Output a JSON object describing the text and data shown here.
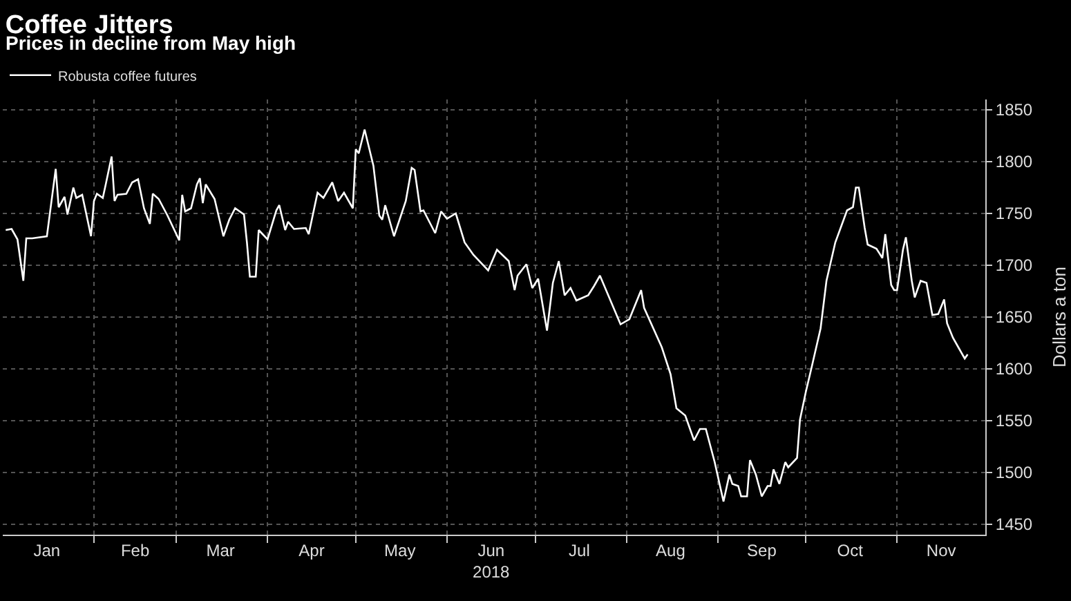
{
  "chart_data": {
    "type": "line",
    "title": "Coffee Jitters",
    "subtitle": "Prices in decline from May high",
    "ylabel": "Dollars a ton",
    "x": [
      "2018-01-02",
      "2018-01-04",
      "2018-01-06",
      "2018-01-08",
      "2018-01-09",
      "2018-01-11",
      "2018-01-16",
      "2018-01-19",
      "2018-01-20",
      "2018-01-22",
      "2018-01-23",
      "2018-01-25",
      "2018-01-26",
      "2018-01-28",
      "2018-01-31",
      "2018-02-01",
      "2018-02-02",
      "2018-02-04",
      "2018-02-05",
      "2018-02-07",
      "2018-02-08",
      "2018-02-09",
      "2018-02-12",
      "2018-02-14",
      "2018-02-16",
      "2018-02-18",
      "2018-02-20",
      "2018-02-21",
      "2018-02-23",
      "2018-02-26",
      "2018-03-02",
      "2018-03-03",
      "2018-03-04",
      "2018-03-06",
      "2018-03-08",
      "2018-03-09",
      "2018-03-10",
      "2018-03-11",
      "2018-03-14",
      "2018-03-17",
      "2018-03-19",
      "2018-03-21",
      "2018-03-24",
      "2018-03-25",
      "2018-03-26",
      "2018-03-28",
      "2018-03-29",
      "2018-04-01",
      "2018-04-04",
      "2018-04-05",
      "2018-04-07",
      "2018-04-08",
      "2018-04-10",
      "2018-04-14",
      "2018-04-15",
      "2018-04-18",
      "2018-04-20",
      "2018-04-23",
      "2018-04-25",
      "2018-04-27",
      "2018-04-30",
      "2018-05-01",
      "2018-05-02",
      "2018-05-04",
      "2018-05-07",
      "2018-05-09",
      "2018-05-10",
      "2018-05-11",
      "2018-05-14",
      "2018-05-18",
      "2018-05-20",
      "2018-05-21",
      "2018-05-23",
      "2018-05-24",
      "2018-05-28",
      "2018-05-30",
      "2018-06-01",
      "2018-06-04",
      "2018-06-07",
      "2018-06-10",
      "2018-06-15",
      "2018-06-18",
      "2018-06-22",
      "2018-06-24",
      "2018-06-25",
      "2018-06-28",
      "2018-06-30",
      "2018-07-02",
      "2018-07-05",
      "2018-07-07",
      "2018-07-09",
      "2018-07-11",
      "2018-07-13",
      "2018-07-15",
      "2018-07-19",
      "2018-07-21",
      "2018-07-23",
      "2018-07-30",
      "2018-08-02",
      "2018-08-06",
      "2018-08-07",
      "2018-08-13",
      "2018-08-16",
      "2018-08-18",
      "2018-08-21",
      "2018-08-24",
      "2018-08-26",
      "2018-08-28",
      "2018-08-31",
      "2018-09-03",
      "2018-09-05",
      "2018-09-06",
      "2018-09-08",
      "2018-09-09",
      "2018-09-11",
      "2018-09-12",
      "2018-09-14",
      "2018-09-16",
      "2018-09-18",
      "2018-09-19",
      "2018-09-20",
      "2018-09-22",
      "2018-09-24",
      "2018-09-25",
      "2018-09-28",
      "2018-09-29",
      "2018-10-01",
      "2018-10-03",
      "2018-10-06",
      "2018-10-08",
      "2018-10-11",
      "2018-10-15",
      "2018-10-17",
      "2018-10-18",
      "2018-10-19",
      "2018-10-21",
      "2018-10-22",
      "2018-10-25",
      "2018-10-27",
      "2018-10-28",
      "2018-10-30",
      "2018-10-31",
      "2018-11-01",
      "2018-11-03",
      "2018-11-04",
      "2018-11-06",
      "2018-11-07",
      "2018-11-09",
      "2018-11-11",
      "2018-11-13",
      "2018-11-15",
      "2018-11-17",
      "2018-11-18",
      "2018-11-20",
      "2018-11-22",
      "2018-11-24",
      "2018-11-25"
    ],
    "series": [
      {
        "name": "Robusta coffee futures",
        "color": "#ffffff",
        "values": [
          1734,
          1735,
          1725,
          1685,
          1726,
          1726,
          1728,
          1793,
          1756,
          1766,
          1749,
          1775,
          1765,
          1768,
          1728,
          1762,
          1769,
          1765,
          1778,
          1805,
          1762,
          1768,
          1769,
          1780,
          1783,
          1755,
          1740,
          1769,
          1764,
          1748,
          1724,
          1768,
          1752,
          1755,
          1778,
          1784,
          1760,
          1778,
          1764,
          1728,
          1744,
          1755,
          1749,
          1722,
          1689,
          1689,
          1734,
          1725,
          1753,
          1758,
          1734,
          1742,
          1735,
          1736,
          1730,
          1770,
          1765,
          1780,
          1762,
          1770,
          1755,
          1812,
          1808,
          1831,
          1796,
          1748,
          1744,
          1758,
          1728,
          1762,
          1794,
          1792,
          1752,
          1753,
          1731,
          1752,
          1745,
          1750,
          1722,
          1710,
          1695,
          1715,
          1704,
          1676,
          1690,
          1701,
          1678,
          1687,
          1637,
          1683,
          1704,
          1671,
          1678,
          1666,
          1671,
          1680,
          1690,
          1643,
          1648,
          1676,
          1659,
          1621,
          1595,
          1562,
          1555,
          1531,
          1542,
          1542,
          1510,
          1472,
          1498,
          1489,
          1487,
          1477,
          1477,
          1512,
          1498,
          1477,
          1487,
          1487,
          1503,
          1489,
          1510,
          1505,
          1514,
          1551,
          1578,
          1602,
          1639,
          1685,
          1722,
          1753,
          1756,
          1775,
          1775,
          1736,
          1720,
          1716,
          1707,
          1730,
          1681,
          1676,
          1676,
          1715,
          1727,
          1685,
          1669,
          1685,
          1683,
          1652,
          1653,
          1667,
          1644,
          1630,
          1620,
          1610,
          1614
        ]
      }
    ],
    "xlim": [
      "2018-01-01",
      "2018-12-01"
    ],
    "xticks": [
      {
        "value": "2018-01-16",
        "label": "Jan"
      },
      {
        "value": "2018-02-15",
        "label": "Feb"
      },
      {
        "value": "2018-03-16",
        "label": "Mar"
      },
      {
        "value": "2018-04-16",
        "label": "Apr"
      },
      {
        "value": "2018-05-16",
        "label": "May"
      },
      {
        "value": "2018-06-16",
        "label": "Jun\n2018"
      },
      {
        "value": "2018-07-16",
        "label": "Jul"
      },
      {
        "value": "2018-08-16",
        "label": "Aug"
      },
      {
        "value": "2018-09-16",
        "label": "Sep"
      },
      {
        "value": "2018-10-16",
        "label": "Oct"
      },
      {
        "value": "2018-11-16",
        "label": "Nov"
      },
      {
        "value": "2018-02-01",
        "label": null
      },
      {
        "value": "2018-03-01",
        "label": null
      },
      {
        "value": "2018-04-01",
        "label": null
      },
      {
        "value": "2018-05-01",
        "label": null
      },
      {
        "value": "2018-06-01",
        "label": null
      },
      {
        "value": "2018-07-01",
        "label": null
      },
      {
        "value": "2018-08-01",
        "label": null
      },
      {
        "value": "2018-09-01",
        "label": null
      },
      {
        "value": "2018-10-01",
        "label": null
      },
      {
        "value": "2018-11-01",
        "label": null
      }
    ],
    "ylim": [
      1440,
      1860
    ],
    "yticks": [
      1450,
      1500,
      1550,
      1600,
      1650,
      1700,
      1750,
      1800,
      1850
    ],
    "grid": true,
    "legend": "top left",
    "marker": "none",
    "line_style": "solid"
  }
}
